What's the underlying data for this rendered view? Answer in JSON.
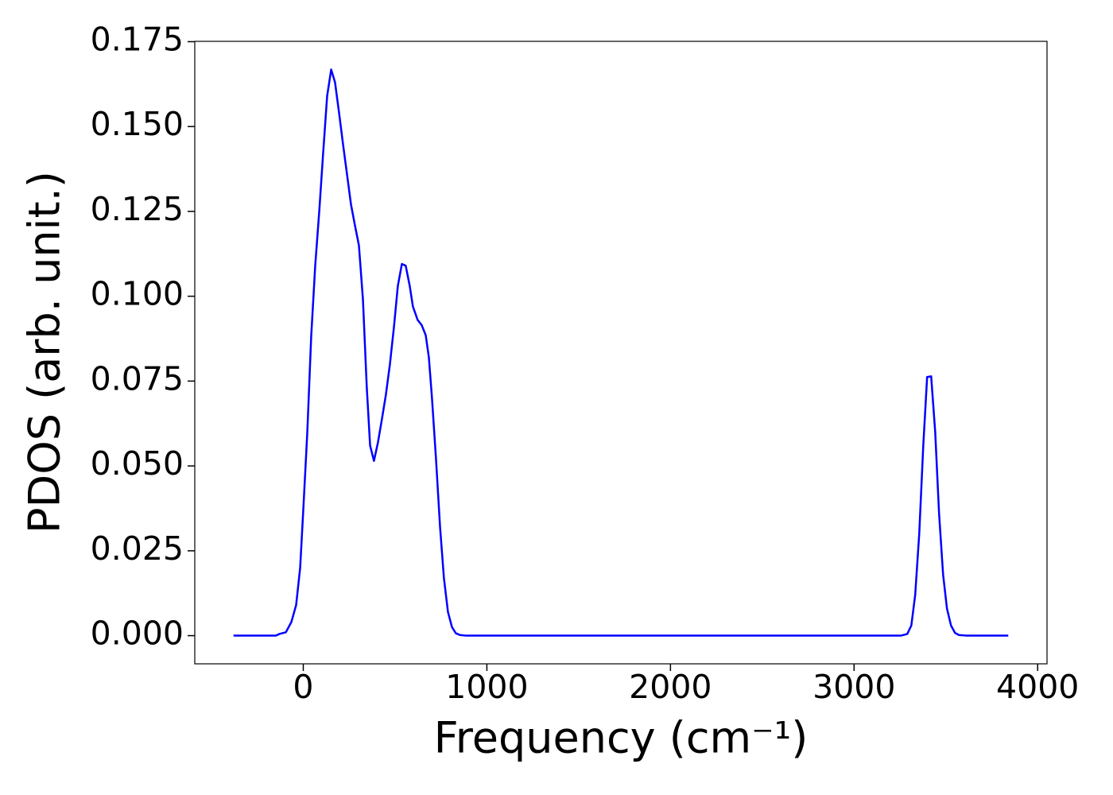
{
  "chart_data": {
    "type": "line",
    "x_label": "Frequency (cm⁻¹)",
    "y_label": "PDOS (arb. unit.)",
    "xlim": [
      -591,
      4051
    ],
    "ylim": [
      -0.0083,
      0.1751
    ],
    "xticks": [
      0,
      1000,
      2000,
      3000,
      4000
    ],
    "yticks": [
      {
        "value": 0,
        "label": "0.000"
      },
      {
        "value": 0.025,
        "label": "0.025"
      },
      {
        "value": 0.05,
        "label": "0.050"
      },
      {
        "value": 0.075,
        "label": "0.075"
      },
      {
        "value": 0.1,
        "label": "0.100"
      },
      {
        "value": 0.125,
        "label": "0.125"
      },
      {
        "value": 0.15,
        "label": "0.150"
      },
      {
        "value": 0.175,
        "label": "0.175"
      }
    ],
    "grid": false,
    "series": [
      {
        "name": "PDOS",
        "color": "#0000ff",
        "x": [
          -380,
          -250,
          -150,
          -130,
          -95,
          -65,
          -39,
          -17,
          0,
          22,
          43,
          65,
          87,
          108,
          130,
          152,
          173,
          195,
          216,
          238,
          260,
          281,
          303,
          325,
          346,
          364,
          385,
          407,
          429,
          450,
          472,
          494,
          515,
          537,
          558,
          580,
          597,
          623,
          645,
          667,
          684,
          701,
          723,
          745,
          766,
          788,
          810,
          831,
          853,
          887,
          1500,
          2500,
          3255,
          3290,
          3312,
          3333,
          3355,
          3377,
          3398,
          3420,
          3442,
          3463,
          3485,
          3506,
          3528,
          3550,
          3571,
          3615,
          3840
        ],
        "values": [
          0,
          0,
          0,
          0.0005,
          0.001,
          0.004,
          0.009,
          0.02,
          0.037,
          0.06,
          0.088,
          0.109,
          0.125,
          0.142,
          0.159,
          0.1668,
          0.163,
          0.154,
          0.145,
          0.136,
          0.127,
          0.121,
          0.115,
          0.099,
          0.073,
          0.056,
          0.0515,
          0.057,
          0.064,
          0.071,
          0.08,
          0.091,
          0.103,
          0.1095,
          0.109,
          0.103,
          0.097,
          0.093,
          0.0915,
          0.0885,
          0.082,
          0.07,
          0.052,
          0.032,
          0.017,
          0.007,
          0.0025,
          0.0007,
          0.0002,
          0,
          0,
          0,
          0,
          0.0005,
          0.003,
          0.012,
          0.03,
          0.056,
          0.0762,
          0.0764,
          0.06,
          0.036,
          0.018,
          0.008,
          0.003,
          0.0008,
          0.0002,
          0,
          0
        ]
      }
    ]
  }
}
